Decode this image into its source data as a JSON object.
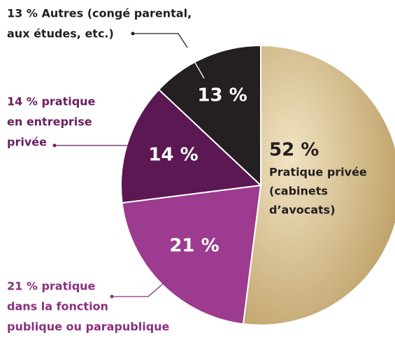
{
  "chart_data": {
    "type": "pie",
    "categories": [
      [
        "Pratique privée",
        "(cabinets",
        "d’avocats)"
      ],
      [
        "21 % pratique",
        "dans la fonction",
        "publique ou parapublique"
      ],
      [
        "14 % pratique",
        "en entreprise",
        "privée"
      ],
      [
        "13 % Autres (congé parental,",
        "aux études, etc.)"
      ]
    ],
    "values": [
      52,
      21,
      14,
      13
    ],
    "value_labels": [
      "52 %",
      "21 %",
      "14 %",
      "13 %"
    ],
    "colors": [
      "#c7ab72",
      "#9c3b8f",
      "#5b1853",
      "#241f20"
    ]
  }
}
